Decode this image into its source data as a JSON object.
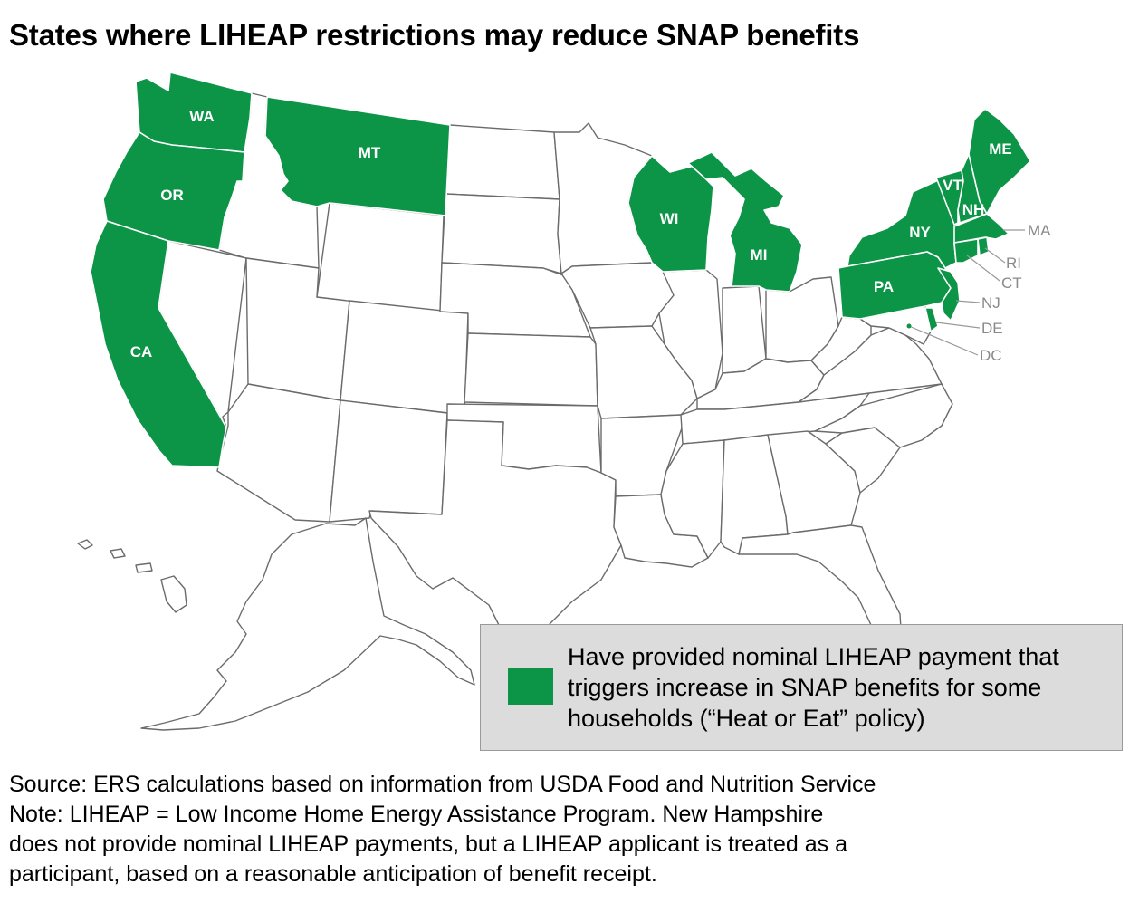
{
  "title": "States where LIHEAP restrictions may reduce SNAP benefits",
  "colors": {
    "selected": "#0c9447",
    "unselected": "#ffffff",
    "border": "#6b6b6b",
    "legend_bg": "#dcdcdc"
  },
  "map": {
    "highlighted_labels": [
      "WA",
      "OR",
      "CA",
      "MT",
      "WI",
      "MI",
      "NY",
      "PA",
      "VT",
      "NH",
      "ME"
    ],
    "callout_labels": [
      "MA",
      "RI",
      "CT",
      "NJ",
      "DE",
      "DC"
    ]
  },
  "legend": {
    "text": "Have provided nominal LIHEAP payment that triggers increase in SNAP benefits for some households (“Heat or Eat” policy)"
  },
  "source": "Source: ERS calculations based on information from USDA Food and Nutrition Service",
  "note_lines": [
    "Note: LIHEAP = Low Income Home Energy Assistance Program. New Hampshire",
    "does not provide nominal LIHEAP payments, but a LIHEAP applicant is treated as a",
    "participant, based on a reasonable anticipation of benefit receipt."
  ]
}
